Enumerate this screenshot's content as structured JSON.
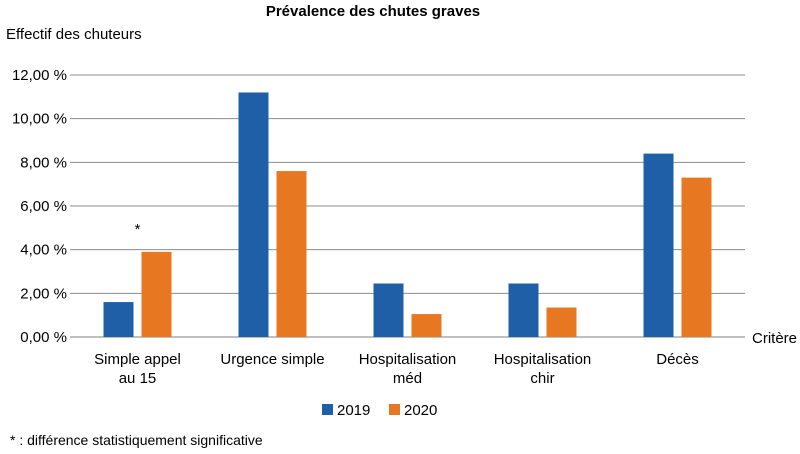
{
  "chart_data": {
    "type": "bar",
    "title": "Prévalence des chutes graves",
    "ylabel": "Effectif des chuteurs",
    "xlabel": "Critère",
    "ylim": [
      0,
      12
    ],
    "yticks": [
      "0,00 %",
      "2,00 %",
      "4,00 %",
      "6,00 %",
      "8,00 %",
      "10,00 %",
      "12,00 %"
    ],
    "categories": [
      [
        "Simple appel",
        "au 15"
      ],
      [
        "Urgence simple"
      ],
      [
        "Hospitalisation",
        "méd"
      ],
      [
        "Hospitalisation",
        "chir"
      ],
      [
        "Décès"
      ]
    ],
    "series": [
      {
        "name": "2019",
        "color": "#1f5fa8",
        "values": [
          1.6,
          11.2,
          2.45,
          2.45,
          8.4
        ]
      },
      {
        "name": "2020",
        "color": "#e87722",
        "values": [
          3.9,
          7.6,
          1.05,
          1.35,
          7.3
        ]
      }
    ],
    "annotations": [
      {
        "category_index": 0,
        "text": "*"
      }
    ],
    "grid": true,
    "legend_position": "bottom"
  },
  "footnote": "* : différence statistiquement significative"
}
